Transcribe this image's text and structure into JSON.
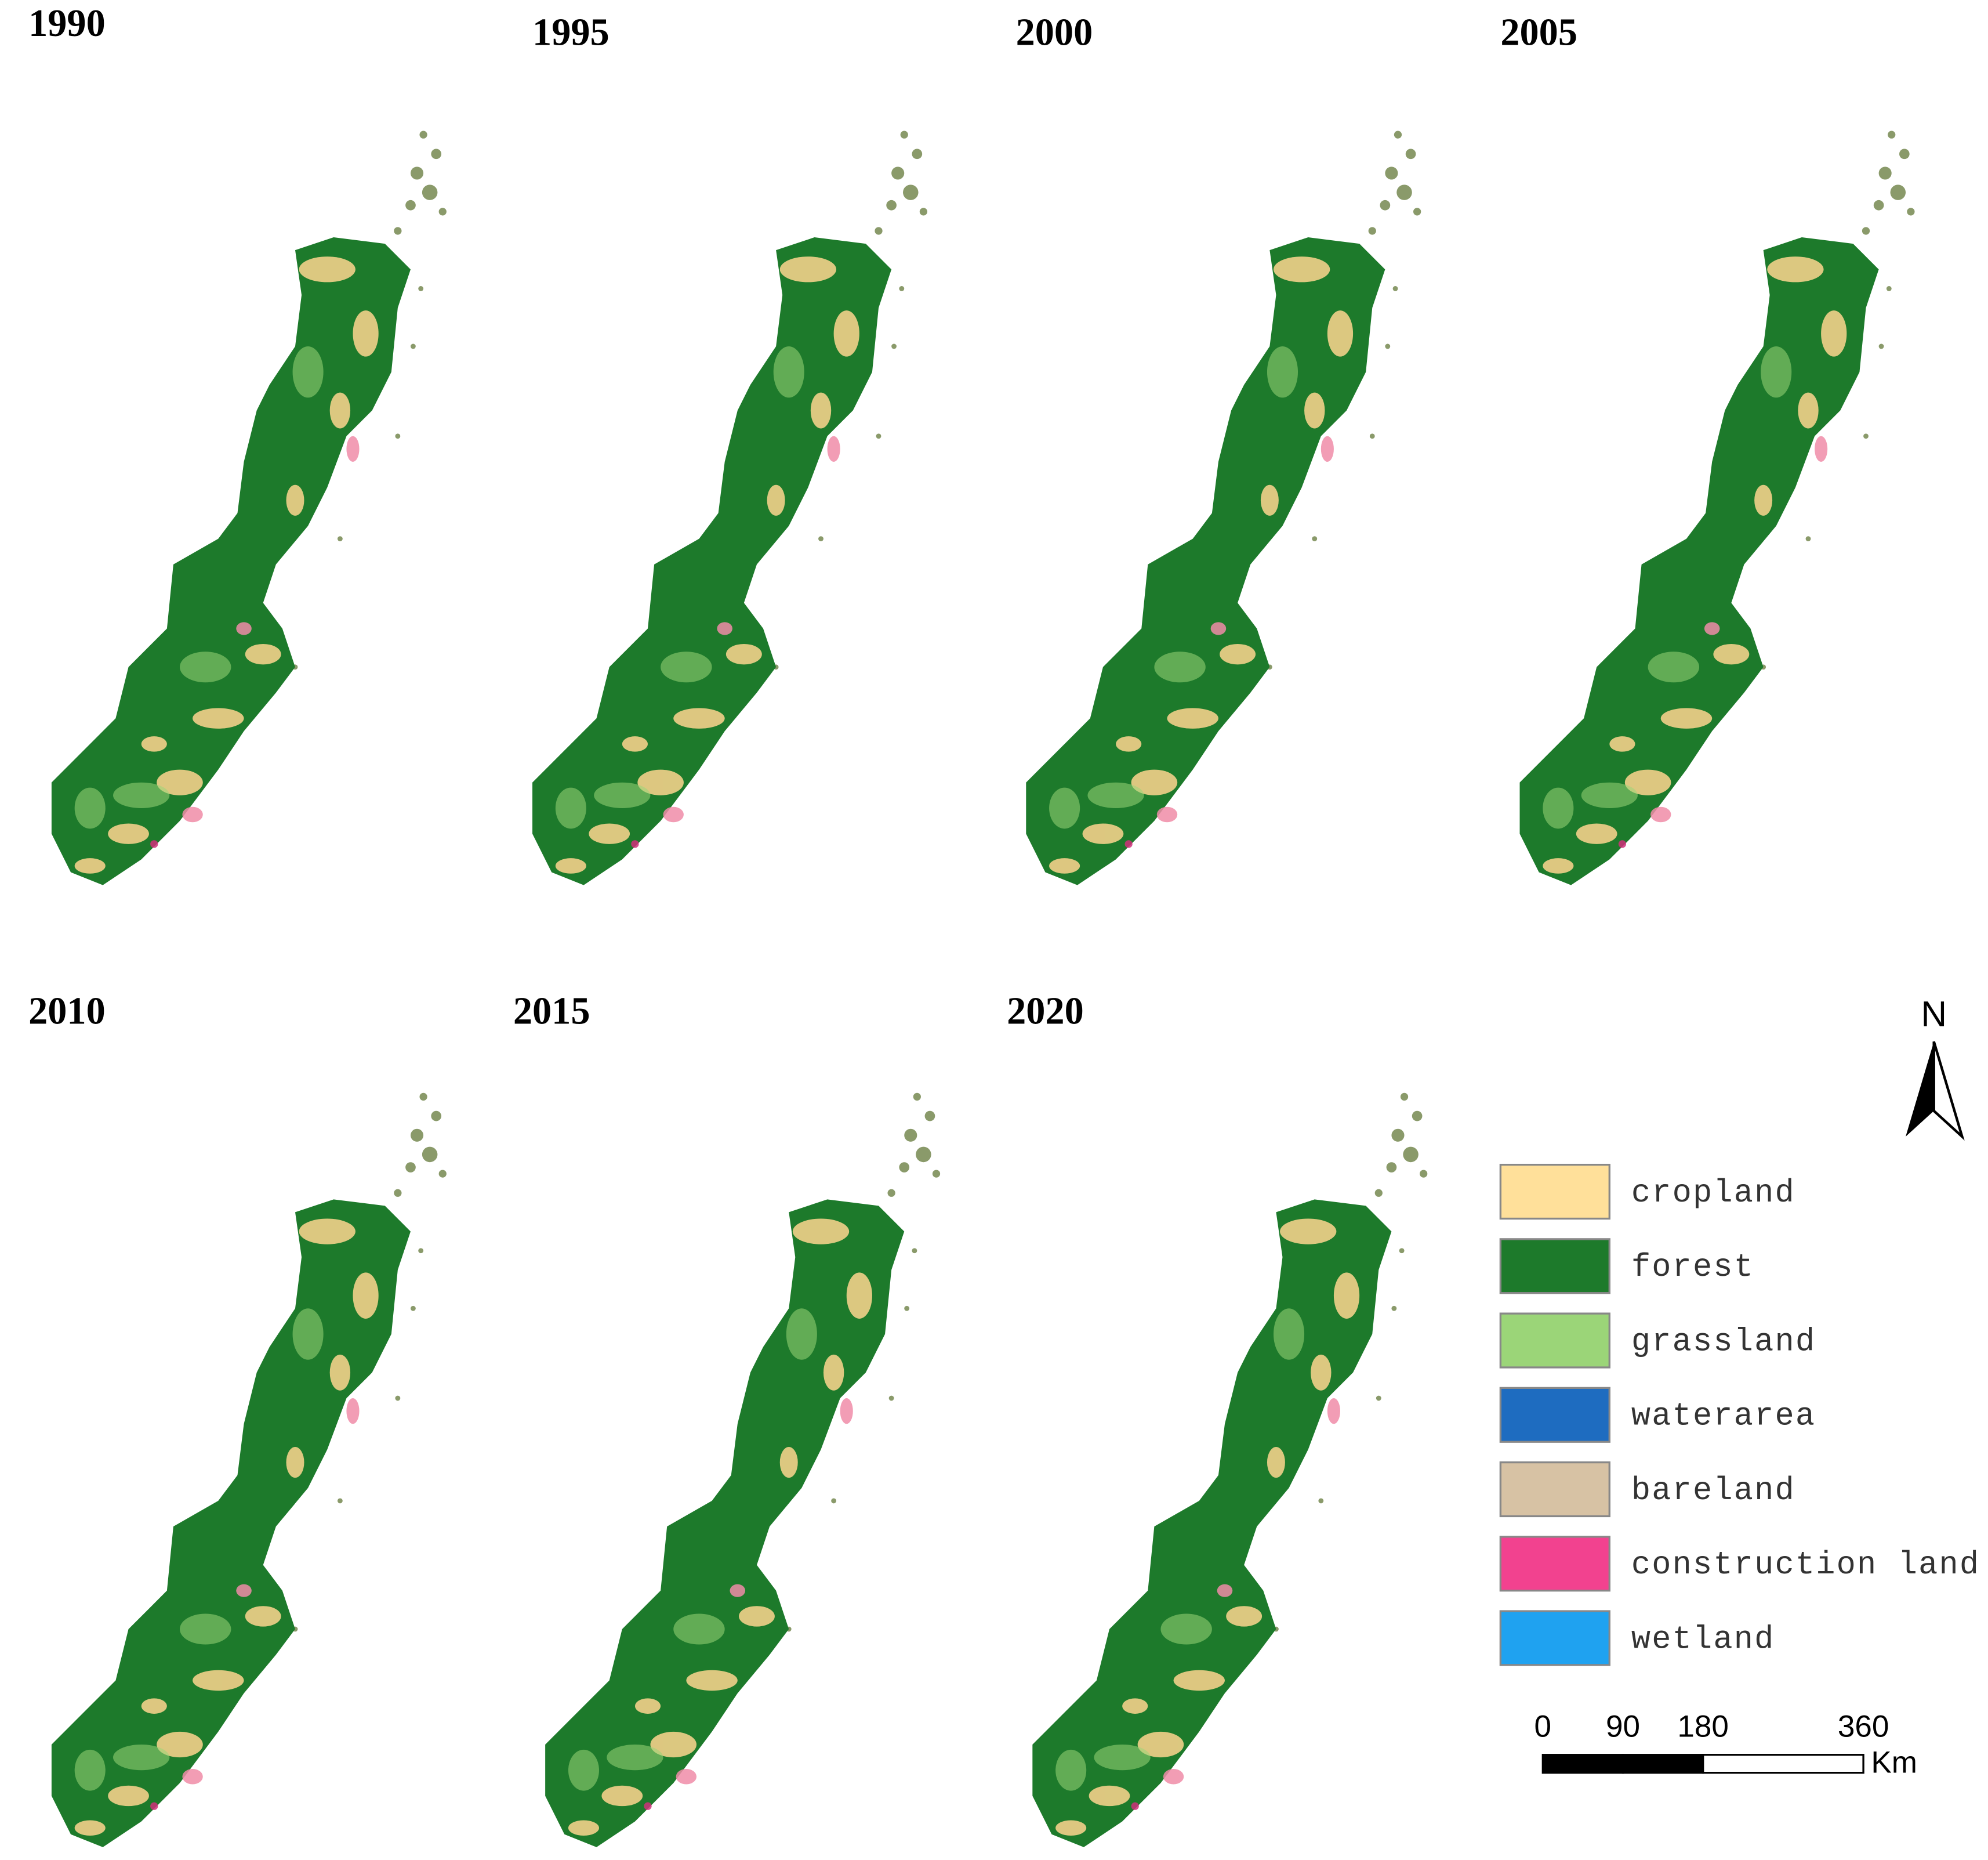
{
  "panels": [
    {
      "year": "1990"
    },
    {
      "year": "1995"
    },
    {
      "year": "2000"
    },
    {
      "year": "2005"
    },
    {
      "year": "2010"
    },
    {
      "year": "2015"
    },
    {
      "year": "2020"
    }
  ],
  "north_arrow": {
    "label": "N"
  },
  "legend": {
    "items": [
      {
        "label": "cropland",
        "color": "#FFE09A"
      },
      {
        "label": "forest",
        "color": "#1D7A2B"
      },
      {
        "label": "grassland",
        "color": "#9BD578"
      },
      {
        "label": "waterarea",
        "color": "#1E6CC0"
      },
      {
        "label": "bareland",
        "color": "#D7C2A4"
      },
      {
        "label": "construction land",
        "color": "#F2428F"
      },
      {
        "label": "wetland",
        "color": "#1FA2F0"
      }
    ]
  },
  "scale_bar": {
    "ticks": [
      0,
      90,
      180,
      360
    ],
    "unit": "Km"
  }
}
